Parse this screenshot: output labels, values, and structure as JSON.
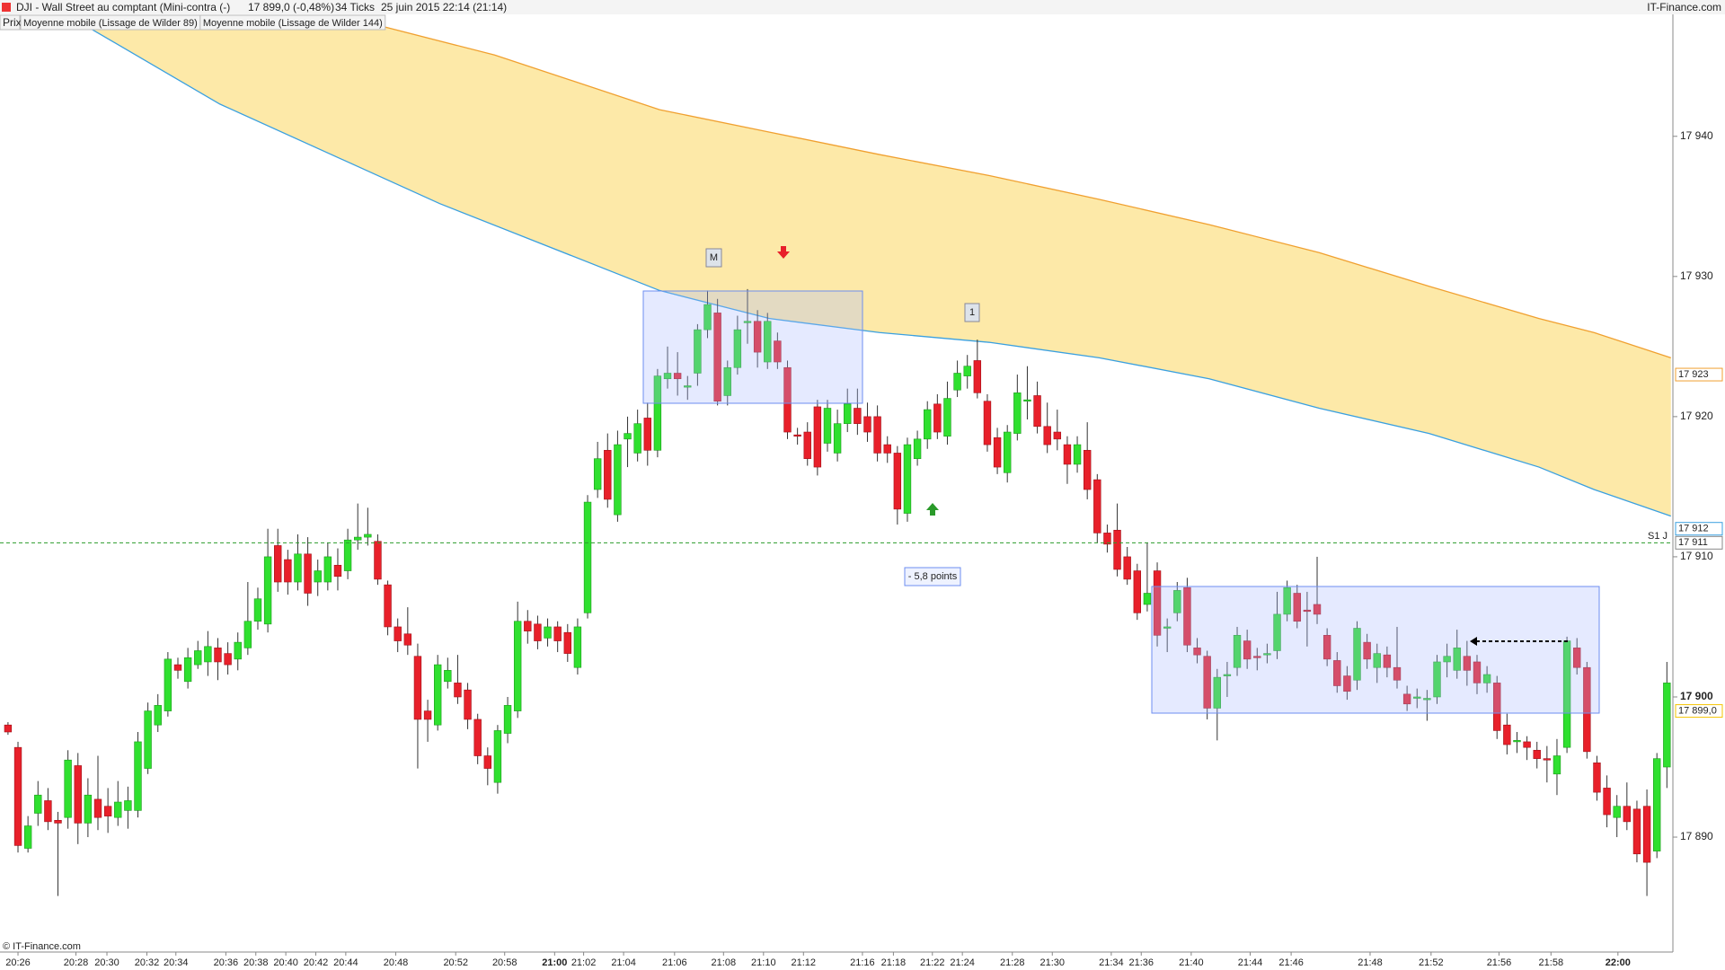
{
  "header": {
    "title": "DJI - Wall Street au comptant (Mini-contra (-)",
    "price": "17 899,0 (-0,48%)",
    "ticks": "34 Ticks",
    "date": "25 juin 2015 22:14 (21:14)",
    "brand": "IT-Finance.com"
  },
  "legend": {
    "price": "Prix"
  },
  "footer": "© IT-Finance.com",
  "annotations": {
    "m": "M",
    "one": "1",
    "points": "- 5,8 points"
  },
  "chart_data": {
    "type": "candlestick",
    "xlim": [
      -0.8,
      166.6
    ],
    "ylim": [
      17881.8,
      17948.7
    ],
    "yticks": [
      {
        "value": 17890,
        "label": "17 890"
      },
      {
        "value": 17900,
        "label": "17 900",
        "bold": true
      },
      {
        "value": 17910,
        "label": "17 910"
      },
      {
        "value": 17920,
        "label": "17 920"
      },
      {
        "value": 17930,
        "label": "17 930"
      },
      {
        "value": 17940,
        "label": "17 940"
      }
    ],
    "xticks": [
      {
        "value": 1,
        "label": "20:26"
      },
      {
        "value": 6.8,
        "label": "20:28"
      },
      {
        "value": 9.9,
        "label": "20:30"
      },
      {
        "value": 13.9,
        "label": "20:32"
      },
      {
        "value": 16.8,
        "label": "20:34"
      },
      {
        "value": 21.8,
        "label": "20:36"
      },
      {
        "value": 24.8,
        "label": "20:38"
      },
      {
        "value": 27.8,
        "label": "20:40"
      },
      {
        "value": 30.8,
        "label": "20:42"
      },
      {
        "value": 33.8,
        "label": "20:44"
      },
      {
        "value": 38.8,
        "label": "20:48"
      },
      {
        "value": 44.8,
        "label": "20:52"
      },
      {
        "value": 49.7,
        "label": "20:58"
      },
      {
        "value": 54.7,
        "label": "21:00",
        "bold": true
      },
      {
        "value": 57.6,
        "label": "21:02"
      },
      {
        "value": 61.6,
        "label": "21:04"
      },
      {
        "value": 66.7,
        "label": "21:06"
      },
      {
        "value": 71.6,
        "label": "21:08"
      },
      {
        "value": 75.6,
        "label": "21:10"
      },
      {
        "value": 79.6,
        "label": "21:12"
      },
      {
        "value": 85.5,
        "label": "21:16"
      },
      {
        "value": 88.6,
        "label": "21:18"
      },
      {
        "value": 92.5,
        "label": "21:22"
      },
      {
        "value": 95.5,
        "label": "21:24"
      },
      {
        "value": 100.5,
        "label": "21:28"
      },
      {
        "value": 104.5,
        "label": "21:30"
      },
      {
        "value": 110.4,
        "label": "21:34"
      },
      {
        "value": 113.4,
        "label": "21:36"
      },
      {
        "value": 118.4,
        "label": "21:40"
      },
      {
        "value": 124.3,
        "label": "21:44"
      },
      {
        "value": 128.4,
        "label": "21:46"
      },
      {
        "value": 136.3,
        "label": "21:48"
      },
      {
        "value": 142.4,
        "label": "21:52"
      },
      {
        "value": 149.2,
        "label": "21:56"
      },
      {
        "value": 154.4,
        "label": "21:58"
      },
      {
        "value": 161.1,
        "label": "22:00",
        "bold": true
      }
    ],
    "up_color": "#2fe02f",
    "down_color": "#e8202a",
    "open": [
      17898.0,
      17896.4,
      17889.2,
      17891.7,
      17892.6,
      17891.2,
      17891.4,
      17895.1,
      17891.0,
      17892.7,
      17892.2,
      17891.4,
      17891.9,
      17891.9,
      17894.9,
      17898.0,
      17899.0,
      17902.3,
      17901.1,
      17902.3,
      17902.5,
      17903.5,
      17903.1,
      17902.7,
      17903.5,
      17905.4,
      17905.2,
      17910.8,
      17909.8,
      17908.2,
      17910.2,
      17908.2,
      17908.2,
      17909.4,
      17909.0,
      17911.2,
      17911.4,
      17911.1,
      17908.0,
      17905.0,
      17904.5,
      17902.9,
      17899.0,
      17898.0,
      17901.1,
      17901.0,
      17900.5,
      17898.4,
      17895.8,
      17893.9,
      17897.4,
      17899.0,
      17905.4,
      17905.2,
      17904.2,
      17905.0,
      17904.6,
      17902.1,
      17906.0,
      17914.8,
      17917.6,
      17913.0,
      17918.4,
      17917.4,
      17919.9,
      17917.6,
      17922.7,
      17923.1,
      17922.1,
      17923.1,
      17926.2,
      17927.4,
      17921.5,
      17923.5,
      17926.7,
      17926.8,
      17923.9,
      17925.4,
      17923.5,
      17918.7,
      17918.9,
      17920.7,
      17918.1,
      17917.4,
      17919.5,
      17920.6,
      17920.0,
      17920.0,
      17918.0,
      17917.4,
      17913.1,
      17917.0,
      17918.4,
      17920.9,
      17918.6,
      17921.9,
      17922.9,
      17924.0,
      17921.1,
      17918.5,
      17916.0,
      17918.8,
      17921.1,
      17921.5,
      17919.3,
      17918.9,
      17918.0,
      17916.6,
      17917.6,
      17915.5,
      17911.7,
      17911.9,
      17910.0,
      17909.0,
      17906.6,
      17909.0,
      17905.0,
      17906.0,
      17907.8,
      17903.5,
      17902.9,
      17899.2,
      17901.5,
      17902.1,
      17904.0,
      17902.9,
      17903.0,
      17903.3,
      17905.9,
      17907.4,
      17906.2,
      17906.6,
      17904.4,
      17902.6,
      17901.5,
      17901.2,
      17903.9,
      17902.1,
      17903.0,
      17902.1,
      17900.2,
      17900.0,
      17899.8,
      17900.0,
      17902.5,
      17901.9,
      17902.9,
      17902.5,
      17901.0,
      17901.0,
      17898.0,
      17896.8,
      17896.8,
      17896.2,
      17895.6,
      17894.5,
      17896.4,
      17903.5,
      17902.1,
      17895.3,
      17893.5,
      17891.4,
      17892.2,
      17892.0,
      17892.2,
      17889.0,
      17895.0
    ],
    "high": [
      17898.2,
      17896.8,
      17891.5,
      17894.0,
      17893.5,
      17891.8,
      17896.2,
      17896.0,
      17894.2,
      17895.8,
      17893.5,
      17894.0,
      17893.6,
      17897.5,
      17899.6,
      17900.2,
      17903.2,
      17902.8,
      17903.5,
      17904.0,
      17904.7,
      17904.2,
      17903.9,
      17904.6,
      17908.2,
      17907.8,
      17912.0,
      17912.0,
      17910.5,
      17911.6,
      17911.4,
      17909.8,
      17911.0,
      17910.6,
      17912.0,
      17913.8,
      17913.5,
      17911.6,
      17908.3,
      17905.6,
      17906.4,
      17903.8,
      17899.8,
      17903.0,
      17902.8,
      17903.0,
      17901.0,
      17898.8,
      17896.4,
      17898.0,
      17900.0,
      17906.8,
      17906.2,
      17905.8,
      17905.6,
      17905.4,
      17905.2,
      17905.6,
      17914.4,
      17918.2,
      17918.8,
      17919.0,
      17920.0,
      17920.5,
      17921.0,
      17923.4,
      17925.0,
      17924.6,
      17922.9,
      17926.6,
      17929.0,
      17928.4,
      17924.0,
      17927.2,
      17929.1,
      17927.6,
      17927.4,
      17926.0,
      17924.0,
      17919.2,
      17919.6,
      17921.2,
      17921.2,
      17920.5,
      17922.0,
      17922.0,
      17921.0,
      17920.8,
      17918.6,
      17917.9,
      17918.5,
      17919.0,
      17921.1,
      17921.6,
      17922.5,
      17924.0,
      17924.4,
      17925.5,
      17921.6,
      17919.2,
      17919.4,
      17923.0,
      17923.6,
      17922.5,
      17921.0,
      17920.5,
      17918.6,
      17918.6,
      17919.6,
      17915.9,
      17912.3,
      17913.8,
      17910.7,
      17909.5,
      17911.0,
      17909.6,
      17905.6,
      17908.2,
      17908.5,
      17904.2,
      17903.3,
      17902.0,
      17902.5,
      17905.0,
      17904.8,
      17903.5,
      17903.8,
      17907.5,
      17908.3,
      17908.0,
      17907.5,
      17910.0,
      17904.9,
      17903.2,
      17902.2,
      17905.4,
      17904.5,
      17903.8,
      17903.6,
      17905.0,
      17900.8,
      17900.6,
      17900.5,
      17903.0,
      17903.8,
      17904.8,
      17904.0,
      17903.0,
      17902.2,
      17901.5,
      17898.8,
      17897.5,
      17897.2,
      17896.8,
      17896.5,
      17897.0,
      17904.3,
      17904.2,
      17902.5,
      17895.8,
      17894.4,
      17893.0,
      17893.9,
      17892.6,
      17893.4,
      17896.0,
      17902.5
    ],
    "low": [
      17897.3,
      17888.9,
      17888.9,
      17890.8,
      17890.5,
      17885.8,
      17890.6,
      17889.5,
      17890.0,
      17890.5,
      17890.3,
      17890.8,
      17890.6,
      17891.4,
      17894.5,
      17897.5,
      17898.6,
      17901.3,
      17900.6,
      17902.0,
      17901.5,
      17901.2,
      17901.6,
      17901.9,
      17903.0,
      17904.8,
      17904.6,
      17907.5,
      17907.3,
      17907.6,
      17906.5,
      17907.2,
      17907.6,
      17907.6,
      17908.4,
      17910.5,
      17910.8,
      17908.0,
      17904.4,
      17903.2,
      17903.0,
      17894.9,
      17896.8,
      17897.6,
      17900.6,
      17899.5,
      17897.7,
      17895.2,
      17893.7,
      17893.1,
      17896.7,
      17898.5,
      17903.8,
      17903.4,
      17903.6,
      17903.2,
      17902.5,
      17901.6,
      17905.6,
      17914.2,
      17913.5,
      17912.5,
      17916.4,
      17916.8,
      17916.5,
      17917.1,
      17922.0,
      17921.5,
      17921.2,
      17922.2,
      17925.6,
      17920.8,
      17920.8,
      17923.0,
      17925.2,
      17923.5,
      17923.4,
      17923.4,
      17918.4,
      17918.0,
      17916.5,
      17915.8,
      17917.5,
      17916.8,
      17918.9,
      17918.7,
      17918.2,
      17916.8,
      17916.7,
      17912.3,
      17912.5,
      17916.5,
      17917.7,
      17918.4,
      17918.0,
      17921.4,
      17922.0,
      17921.3,
      17917.5,
      17915.9,
      17915.3,
      17918.3,
      17919.8,
      17918.8,
      17917.4,
      17917.6,
      17915.2,
      17916.0,
      17914.1,
      17911.0,
      17910.3,
      17908.6,
      17908.0,
      17905.5,
      17906.1,
      17903.6,
      17903.2,
      17905.4,
      17903.2,
      17902.4,
      17898.4,
      17896.9,
      17900.0,
      17901.5,
      17902.0,
      17901.9,
      17902.4,
      17902.7,
      17905.4,
      17904.9,
      17903.6,
      17905.2,
      17902.2,
      17900.3,
      17899.8,
      17900.5,
      17902.0,
      17901.0,
      17901.4,
      17900.6,
      17899.0,
      17899.2,
      17898.3,
      17899.5,
      17901.4,
      17901.3,
      17900.8,
      17900.2,
      17900.3,
      17897.0,
      17895.9,
      17896.0,
      17895.5,
      17894.9,
      17893.9,
      17893.0,
      17896.0,
      17901.6,
      17895.6,
      17892.6,
      17890.7,
      17890.0,
      17890.5,
      17888.2,
      17885.8,
      17888.5,
      17893.5
    ],
    "close": [
      17897.5,
      17889.4,
      17890.8,
      17893.0,
      17891.1,
      17891.0,
      17895.5,
      17891.0,
      17893.0,
      17891.4,
      17891.5,
      17892.5,
      17892.6,
      17896.8,
      17899.0,
      17899.4,
      17902.7,
      17901.9,
      17902.8,
      17903.3,
      17903.6,
      17902.5,
      17902.3,
      17903.9,
      17905.4,
      17907.0,
      17910.0,
      17908.2,
      17908.2,
      17910.2,
      17907.4,
      17909.0,
      17910.0,
      17908.6,
      17911.2,
      17911.4,
      17911.6,
      17908.4,
      17905.0,
      17904.0,
      17903.7,
      17898.4,
      17898.4,
      17902.3,
      17901.9,
      17900.0,
      17898.4,
      17895.8,
      17894.9,
      17897.6,
      17899.4,
      17905.4,
      17904.7,
      17904.0,
      17905.0,
      17904.0,
      17903.1,
      17905.0,
      17913.9,
      17917.0,
      17914.1,
      17918.0,
      17918.8,
      17919.5,
      17917.6,
      17922.9,
      17923.1,
      17922.7,
      17922.2,
      17926.2,
      17928.0,
      17921.1,
      17923.5,
      17926.2,
      17926.8,
      17924.6,
      17926.8,
      17923.9,
      17918.9,
      17918.6,
      17917.0,
      17916.4,
      17920.6,
      17919.5,
      17920.9,
      17919.5,
      17918.9,
      17917.4,
      17917.4,
      17913.4,
      17918.0,
      17918.4,
      17920.5,
      17918.9,
      17921.3,
      17923.1,
      17923.6,
      17921.7,
      17918.0,
      17916.4,
      17918.9,
      17921.7,
      17921.2,
      17919.3,
      17918.0,
      17918.4,
      17916.6,
      17918.0,
      17914.8,
      17911.7,
      17910.9,
      17909.1,
      17908.4,
      17906.0,
      17907.4,
      17904.4,
      17905.0,
      17907.6,
      17903.7,
      17903.0,
      17899.2,
      17901.4,
      17901.6,
      17904.4,
      17902.7,
      17902.8,
      17903.1,
      17905.9,
      17907.8,
      17905.4,
      17906.1,
      17905.9,
      17902.7,
      17900.8,
      17900.4,
      17904.9,
      17902.7,
      17903.1,
      17902.1,
      17901.2,
      17899.5,
      17900.0,
      17899.9,
      17902.5,
      17902.9,
      17903.5,
      17901.9,
      17901.0,
      17901.6,
      17897.6,
      17896.6,
      17896.9,
      17896.4,
      17895.6,
      17895.5,
      17895.8,
      17904.0,
      17902.1,
      17896.1,
      17893.2,
      17891.6,
      17892.2,
      17891.1,
      17888.8,
      17888.2,
      17895.6,
      17901.0
    ],
    "series": [
      {
        "name": "Moyenne mobile (Lissage de Wilder 89)",
        "color": "#3aa0e0",
        "x": [
          7.5,
          21.2,
          43.2,
          65.2,
          76.2,
          87.2,
          98.2,
          109.2,
          120.2,
          131.2,
          142.2,
          153.2,
          158.7,
          166.4
        ],
        "values": [
          17948.0,
          17942.3,
          17935.2,
          17929.0,
          17927.0,
          17926.0,
          17925.3,
          17924.2,
          17922.7,
          17920.6,
          17918.8,
          17916.4,
          17914.8,
          17912.9
        ]
      },
      {
        "name": "Moyenne mobile (Lissage de Wilder 144)",
        "color": "#f0a030",
        "x": [
          36.6,
          48.7,
          65.2,
          76.2,
          87.2,
          98.2,
          109.2,
          120.2,
          131.2,
          142.2,
          153.2,
          158.7,
          166.4
        ],
        "values": [
          17948.0,
          17945.8,
          17941.9,
          17940.3,
          17938.7,
          17937.2,
          17935.5,
          17933.7,
          17931.7,
          17929.3,
          17927.0,
          17926.0,
          17924.2
        ]
      }
    ],
    "band_color": "#fde9a8",
    "level": {
      "value": 17911.0,
      "label": "S1 J",
      "color": "#2a9a2a"
    },
    "axis_tags": [
      {
        "value": 17923,
        "label": "17 923",
        "color": "#f0a030"
      },
      {
        "value": 17912,
        "label": "17 912",
        "color": "#3aa0e0"
      },
      {
        "value": 17911,
        "label": "17 911",
        "color": "#888888"
      },
      {
        "value": 17899,
        "label": "17 899,0",
        "color": "#f5c400"
      }
    ]
  }
}
